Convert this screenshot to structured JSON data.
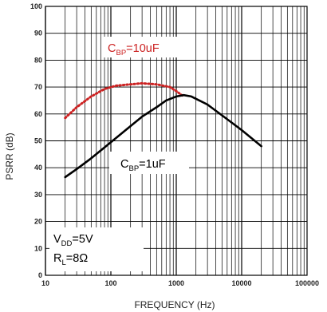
{
  "chart_data": {
    "type": "line",
    "title": "",
    "xlabel": "FREQUENCY (Hz)",
    "ylabel": "PSRR (dB)",
    "x_scale": "log",
    "xlim": [
      10,
      100000
    ],
    "ylim": [
      0,
      100
    ],
    "grid": true,
    "x_tick_labels": [
      "10",
      "100",
      "1000",
      "10000",
      "100000"
    ],
    "y_tick_labels": [
      "0",
      "10",
      "20",
      "30",
      "40",
      "50",
      "60",
      "70",
      "80",
      "90",
      "100"
    ],
    "series": [
      {
        "label_parts": [
          "C",
          "BP",
          "=10uF"
        ],
        "color": "#cc2222",
        "style": "dotted",
        "x": [
          20,
          30,
          50,
          80,
          120,
          200,
          300,
          500,
          800,
          1000,
          1300
        ],
        "y": [
          58.5,
          62.5,
          66.5,
          69.3,
          70.5,
          71.0,
          71.4,
          71.0,
          70.0,
          68.5,
          66.5
        ]
      },
      {
        "label_parts": [
          "C",
          "BP",
          "=1uF"
        ],
        "color": "#000000",
        "style": "solid",
        "x": [
          20,
          30,
          50,
          100,
          200,
          300,
          500,
          700,
          1000,
          1300,
          1700,
          3000,
          5000,
          10000,
          20000
        ],
        "y": [
          36.5,
          39.5,
          43.5,
          49.5,
          55.5,
          59.0,
          62.5,
          65.0,
          66.5,
          67.0,
          66.5,
          63.5,
          59.5,
          54.0,
          48.0
        ]
      }
    ],
    "annotations": [
      {
        "parts": [
          "V",
          "DD",
          "=5V"
        ]
      },
      {
        "parts": [
          "R",
          "L",
          "=8Ω"
        ]
      }
    ]
  }
}
